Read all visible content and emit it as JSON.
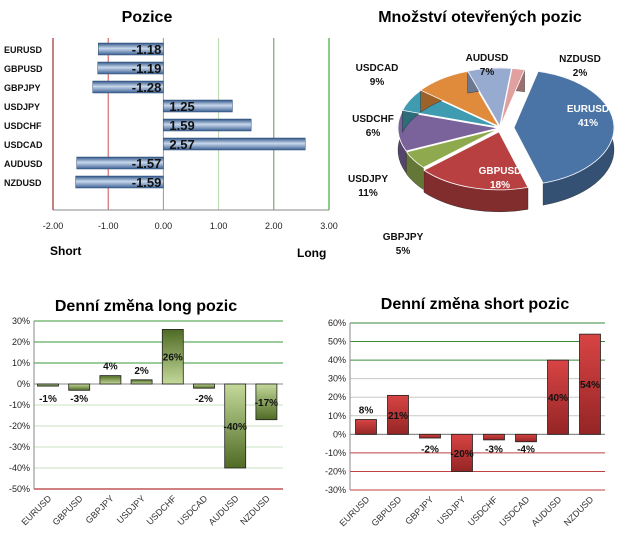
{
  "chart_data": [
    {
      "type": "bar",
      "orientation": "horizontal",
      "title": "Pozice",
      "categories": [
        "EURUSD",
        "GBPUSD",
        "GBPJPY",
        "USDJPY",
        "USDCHF",
        "USDCAD",
        "AUDUSD",
        "NZDUSD"
      ],
      "values": [
        -1.18,
        -1.19,
        -1.28,
        1.25,
        1.59,
        2.57,
        -1.57,
        -1.59
      ],
      "value_labels": [
        "-1.18",
        "-1.19",
        "-1.28",
        "1.25",
        "1.59",
        "2.57",
        "-1.57",
        "-1.59"
      ],
      "xlim": [
        -2,
        3
      ],
      "xticks": [
        "-2.00",
        "-1.00",
        "0.00",
        "1.00",
        "2.00",
        "3.00"
      ],
      "annotations": [
        "Short",
        "Long"
      ],
      "color": "#4f74a8"
    },
    {
      "type": "pie",
      "title": "Množství otevřených pozic",
      "categories": [
        "EURUSD",
        "GBPUSD",
        "GBPJPY",
        "USDJPY",
        "USDCHF",
        "USDCAD",
        "AUDUSD",
        "NZDUSD"
      ],
      "values": [
        41,
        18,
        5,
        11,
        6,
        9,
        7,
        2
      ],
      "value_labels": [
        "41%",
        "18%",
        "5%",
        "11%",
        "6%",
        "9%",
        "7%",
        "2%"
      ],
      "colors": [
        "#4a74a6",
        "#b84040",
        "#8faa4e",
        "#7a629a",
        "#3f9bb0",
        "#e08a3c",
        "#97abd0",
        "#e0a0a0"
      ]
    },
    {
      "type": "bar",
      "title": "Denní změna long pozic",
      "categories": [
        "EURUSD",
        "GBPUSD",
        "GBPJPY",
        "USDJPY",
        "USDCHF",
        "USDCAD",
        "AUDUSD",
        "NZDUSD"
      ],
      "values": [
        -1,
        -3,
        4,
        2,
        26,
        -2,
        -40,
        -17
      ],
      "value_labels": [
        "-1%",
        "-3%",
        "4%",
        "2%",
        "26%",
        "-2%",
        "-40%",
        "-17%"
      ],
      "ylim": [
        -50,
        30
      ],
      "yticks": [
        "-50%",
        "-40%",
        "-30%",
        "-20%",
        "-10%",
        "0%",
        "10%",
        "20%",
        "30%"
      ],
      "color": "#6b8a3a"
    },
    {
      "type": "bar",
      "title": "Denní změna short pozic",
      "categories": [
        "EURUSD",
        "GBPUSD",
        "GBPJPY",
        "USDJPY",
        "USDCHF",
        "USDCAD",
        "AUDUSD",
        "NZDUSD"
      ],
      "values": [
        8,
        21,
        -2,
        -20,
        -3,
        -4,
        40,
        54
      ],
      "value_labels": [
        "8%",
        "21%",
        "-2%",
        "-20%",
        "-3%",
        "-4%",
        "40%",
        "54%"
      ],
      "ylim": [
        -30,
        60
      ],
      "yticks": [
        "-30%",
        "-20%",
        "-10%",
        "0%",
        "10%",
        "20%",
        "30%",
        "40%",
        "50%",
        "60%"
      ],
      "color": "#c63a3a"
    }
  ]
}
